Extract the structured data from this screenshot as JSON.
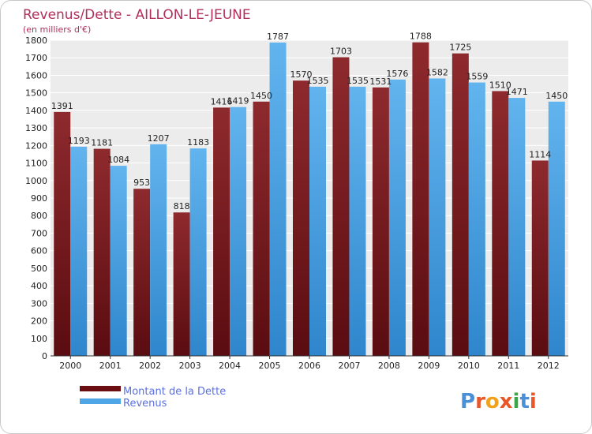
{
  "title": "Revenus/Dette - AILLON-LE-JEUNE",
  "subtitle": "(en milliers d'€)",
  "colors": {
    "debt": "#7a1a1e",
    "debt_light": "#a23a3e",
    "revenue": "#4ea6e6",
    "revenue_light": "#66b8f0",
    "title": "#b0305a",
    "legend_text": "#5b6fe0"
  },
  "legend": {
    "debt_label": "Montant de la Dette",
    "revenue_label": "Revenus"
  },
  "logo": {
    "text": "Proxiti"
  },
  "chart_data": {
    "type": "bar",
    "title": "Revenus/Dette - AILLON-LE-JEUNE",
    "ylabel": "(en milliers d'€)",
    "xlabel": "",
    "ylim": [
      0,
      1800
    ],
    "ytick_step": 100,
    "grid": true,
    "legend_position": "bottom-left",
    "categories": [
      "2000",
      "2001",
      "2002",
      "2003",
      "2004",
      "2005",
      "2006",
      "2007",
      "2008",
      "2009",
      "2010",
      "2011",
      "2012"
    ],
    "series": [
      {
        "name": "Montant de la Dette",
        "values": [
          1391,
          1181,
          953,
          818,
          1416,
          1450,
          1570,
          1703,
          1531,
          1788,
          1725,
          1510,
          1114
        ]
      },
      {
        "name": "Revenus",
        "values": [
          1193,
          1084,
          1207,
          1183,
          1419,
          1787,
          1535,
          1535,
          1576,
          1582,
          1559,
          1471,
          1450
        ]
      }
    ]
  }
}
